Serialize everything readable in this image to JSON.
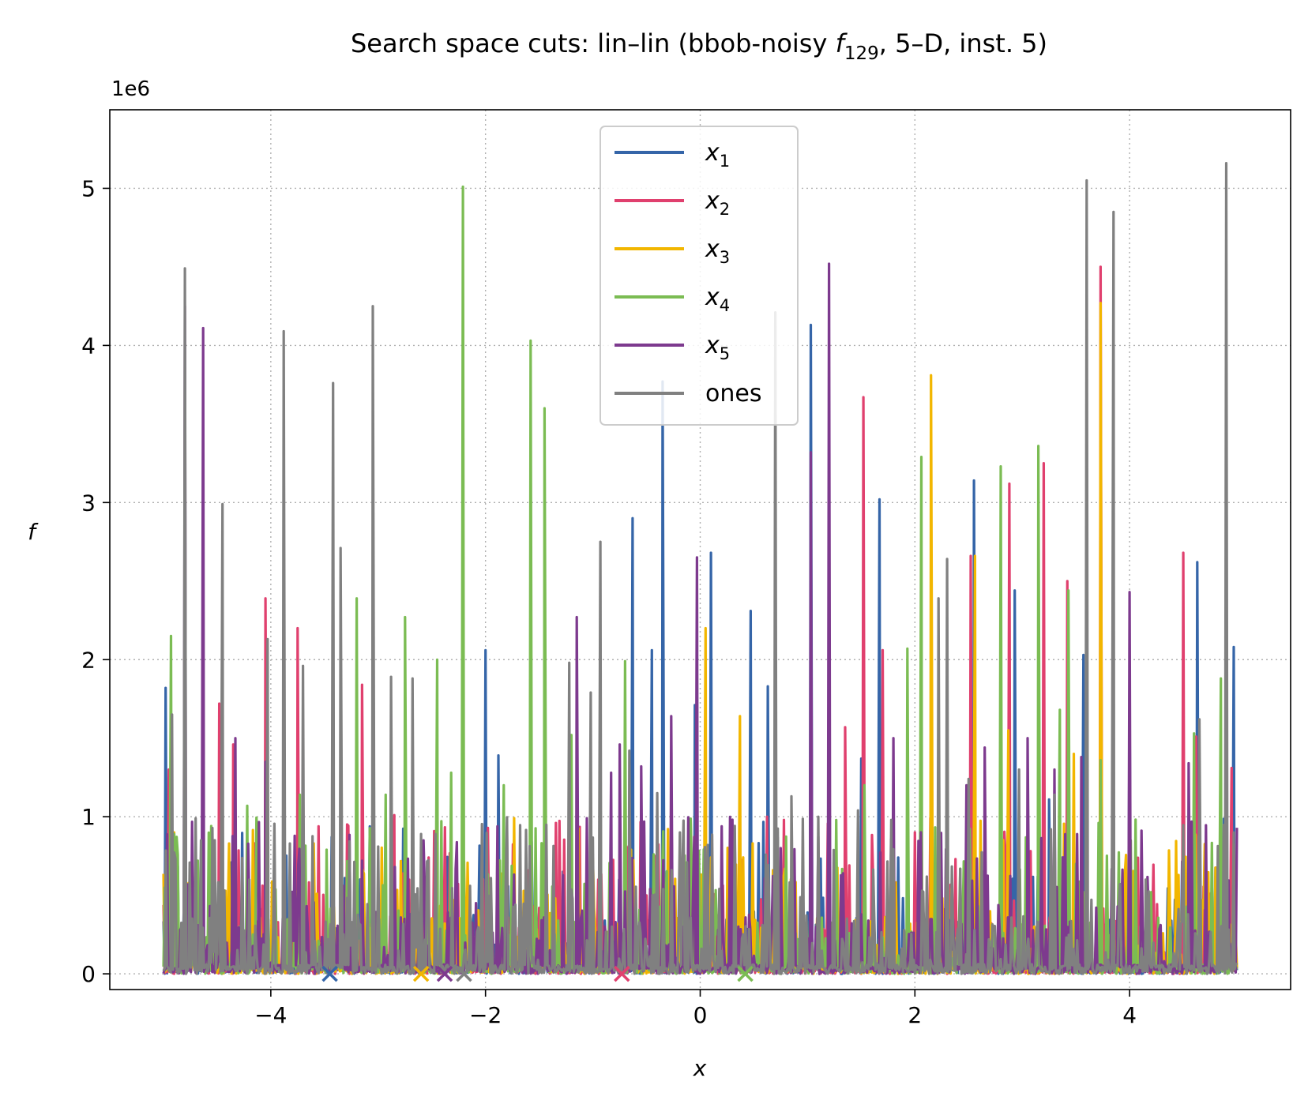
{
  "chart_data": {
    "type": "line",
    "title_main": "Search space cuts: lin–lin (bbob-noisy ",
    "title_func": "f",
    "title_func_sub": "129",
    "title_tail": ", 5–D, inst. 5)",
    "xlabel": "x",
    "ylabel": "f",
    "y_offset_label": "1e6",
    "xlim": [
      -5.5,
      5.5
    ],
    "ylim": [
      -100000,
      5500000
    ],
    "x_ticks": [
      -4,
      -2,
      0,
      2,
      4
    ],
    "x_tick_labels": [
      "−4",
      "−2",
      "0",
      "2",
      "4"
    ],
    "y_ticks": [
      0,
      1000000,
      2000000,
      3000000,
      4000000,
      5000000
    ],
    "y_tick_labels": [
      "0",
      "1",
      "2",
      "3",
      "4",
      "5"
    ],
    "grid": true,
    "legend_position": "top-center",
    "series": [
      {
        "name": "x",
        "name_sub": "1",
        "color": "#3565A8",
        "optimum_x": -3.45,
        "peaks": [
          [
            -4.98,
            1820000
          ],
          [
            -4.55,
            800000
          ],
          [
            -2.0,
            2060000
          ],
          [
            -1.88,
            1390000
          ],
          [
            -1.75,
            680000
          ],
          [
            -1.57,
            840000
          ],
          [
            -0.63,
            2900000
          ],
          [
            -0.45,
            2060000
          ],
          [
            -0.35,
            3770000
          ],
          [
            -0.05,
            1710000
          ],
          [
            0.1,
            2680000
          ],
          [
            0.47,
            2310000
          ],
          [
            0.63,
            1830000
          ],
          [
            1.03,
            4130000
          ],
          [
            1.5,
            1370000
          ],
          [
            1.67,
            3020000
          ],
          [
            2.55,
            3140000
          ],
          [
            2.93,
            2440000
          ],
          [
            3.25,
            1110000
          ],
          [
            3.57,
            2030000
          ],
          [
            4.0,
            1820000
          ],
          [
            4.63,
            2620000
          ],
          [
            4.97,
            2080000
          ]
        ]
      },
      {
        "name": "x",
        "name_sub": "2",
        "color": "#E0406E",
        "optimum_x": -0.73,
        "peaks": [
          [
            -4.95,
            1300000
          ],
          [
            -4.7,
            700000
          ],
          [
            -4.48,
            1720000
          ],
          [
            -4.35,
            1460000
          ],
          [
            -4.05,
            2390000
          ],
          [
            -3.75,
            2200000
          ],
          [
            -3.15,
            1840000
          ],
          [
            -2.85,
            1010000
          ],
          [
            -2.53,
            740000
          ],
          [
            -2.28,
            530000
          ],
          [
            -1.5,
            420000
          ],
          [
            -0.95,
            600000
          ],
          [
            -0.27,
            1290000
          ],
          [
            0.7,
            1480000
          ],
          [
            0.78,
            980000
          ],
          [
            1.35,
            1570000
          ],
          [
            1.52,
            3670000
          ],
          [
            1.7,
            2060000
          ],
          [
            2.06,
            1610000
          ],
          [
            2.52,
            2660000
          ],
          [
            2.88,
            3120000
          ],
          [
            3.2,
            3250000
          ],
          [
            3.42,
            2500000
          ],
          [
            3.73,
            4500000
          ],
          [
            4.05,
            600000
          ],
          [
            4.5,
            2680000
          ],
          [
            4.62,
            1510000
          ],
          [
            4.95,
            1310000
          ]
        ]
      },
      {
        "name": "x",
        "name_sub": "3",
        "color": "#F2B600",
        "optimum_x": -2.6,
        "peaks": [
          [
            -4.9,
            900000
          ],
          [
            -3.57,
            510000
          ],
          [
            -2.65,
            420000
          ],
          [
            -2.38,
            320000
          ],
          [
            -1.35,
            480000
          ],
          [
            -0.33,
            420000
          ],
          [
            0.05,
            2200000
          ],
          [
            0.37,
            1640000
          ],
          [
            0.62,
            640000
          ],
          [
            1.2,
            610000
          ],
          [
            1.93,
            480000
          ],
          [
            2.15,
            3810000
          ],
          [
            2.34,
            540000
          ],
          [
            2.56,
            2660000
          ],
          [
            2.87,
            1550000
          ],
          [
            3.48,
            1400000
          ],
          [
            3.73,
            4270000
          ],
          [
            4.97,
            830000
          ]
        ]
      },
      {
        "name": "x",
        "name_sub": "4",
        "color": "#7BBC53",
        "optimum_x": 0.42,
        "peaks": [
          [
            -4.93,
            2150000
          ],
          [
            -4.68,
            720000
          ],
          [
            -4.22,
            1070000
          ],
          [
            -3.73,
            1140000
          ],
          [
            -3.48,
            790000
          ],
          [
            -3.2,
            2390000
          ],
          [
            -2.93,
            1140000
          ],
          [
            -2.75,
            360000
          ],
          [
            -2.75,
            2270000
          ],
          [
            -2.45,
            2000000
          ],
          [
            -2.32,
            1280000
          ],
          [
            -2.21,
            5010000
          ],
          [
            -1.83,
            1200000
          ],
          [
            -1.58,
            4030000
          ],
          [
            -1.45,
            3600000
          ],
          [
            -1.2,
            1520000
          ],
          [
            -0.7,
            1990000
          ],
          [
            0.27,
            480000
          ],
          [
            1.53,
            1200000
          ],
          [
            1.93,
            2070000
          ],
          [
            2.06,
            3290000
          ],
          [
            2.8,
            3230000
          ],
          [
            3.15,
            3360000
          ],
          [
            3.35,
            1680000
          ],
          [
            3.43,
            2440000
          ],
          [
            3.73,
            1360000
          ],
          [
            4.2,
            520000
          ],
          [
            4.6,
            1530000
          ],
          [
            4.85,
            1880000
          ]
        ]
      },
      {
        "name": "x",
        "name_sub": "5",
        "color": "#7D3A8E",
        "optimum_x": -2.38,
        "peaks": [
          [
            -4.8,
            4250000
          ],
          [
            -4.63,
            4110000
          ],
          [
            -4.33,
            1500000
          ],
          [
            -4.05,
            1350000
          ],
          [
            -3.15,
            720000
          ],
          [
            -2.7,
            380000
          ],
          [
            -2.35,
            390000
          ],
          [
            -1.15,
            2270000
          ],
          [
            -0.83,
            1280000
          ],
          [
            -0.75,
            1460000
          ],
          [
            -0.55,
            1320000
          ],
          [
            -0.27,
            1640000
          ],
          [
            -0.03,
            2650000
          ],
          [
            0.75,
            800000
          ],
          [
            1.03,
            3320000
          ],
          [
            1.2,
            4520000
          ],
          [
            1.33,
            640000
          ],
          [
            1.8,
            1500000
          ],
          [
            2.48,
            1200000
          ],
          [
            2.65,
            1440000
          ],
          [
            3.05,
            1500000
          ],
          [
            3.3,
            1300000
          ],
          [
            3.55,
            1380000
          ],
          [
            4.0,
            2430000
          ],
          [
            4.55,
            1340000
          ],
          [
            4.9,
            1320000
          ]
        ]
      },
      {
        "name": "ones",
        "name_sub": "",
        "color": "#808080",
        "optimum_x": -2.2,
        "peaks": [
          [
            -4.92,
            1650000
          ],
          [
            -4.8,
            4490000
          ],
          [
            -4.65,
            850000
          ],
          [
            -4.45,
            2990000
          ],
          [
            -4.2,
            600000
          ],
          [
            -4.03,
            2130000
          ],
          [
            -3.88,
            4090000
          ],
          [
            -3.7,
            1960000
          ],
          [
            -3.42,
            3760000
          ],
          [
            -3.35,
            2710000
          ],
          [
            -3.05,
            4250000
          ],
          [
            -2.88,
            1890000
          ],
          [
            -2.68,
            1880000
          ],
          [
            -2.6,
            890000
          ],
          [
            -1.95,
            610000
          ],
          [
            -1.22,
            1980000
          ],
          [
            -1.02,
            1790000
          ],
          [
            -0.93,
            2750000
          ],
          [
            -0.66,
            1420000
          ],
          [
            -0.4,
            1150000
          ],
          [
            0.07,
            820000
          ],
          [
            0.58,
            310000
          ],
          [
            0.7,
            4210000
          ],
          [
            0.85,
            1130000
          ],
          [
            1.1,
            1000000
          ],
          [
            1.47,
            1040000
          ],
          [
            1.78,
            980000
          ],
          [
            2.22,
            2390000
          ],
          [
            2.3,
            2640000
          ],
          [
            2.5,
            1240000
          ],
          [
            2.97,
            1300000
          ],
          [
            3.3,
            1140000
          ],
          [
            3.6,
            5050000
          ],
          [
            3.85,
            4850000
          ],
          [
            4.15,
            600000
          ],
          [
            4.65,
            1620000
          ],
          [
            4.9,
            5160000
          ],
          [
            4.97,
            900000
          ]
        ]
      }
    ]
  }
}
